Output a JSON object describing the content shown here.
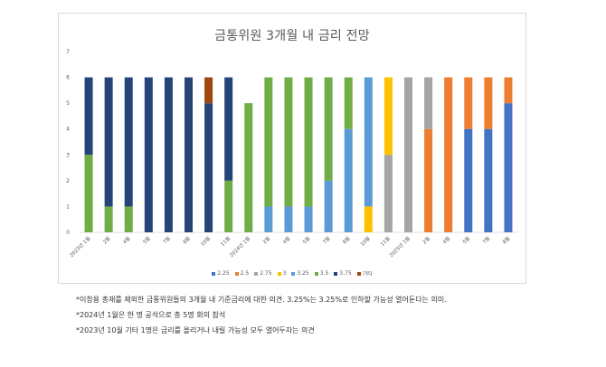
{
  "chart_data": {
    "type": "bar",
    "stacked": true,
    "title": "금통위원 3개월 내 금리 전망",
    "xlabel": "",
    "ylabel": "",
    "ylim": [
      0,
      7
    ],
    "yticks": [
      0,
      1,
      2,
      3,
      4,
      5,
      6,
      7
    ],
    "grid": false,
    "legend_position": "bottom",
    "categories": [
      "2023년 1월",
      "2월",
      "4월",
      "5월",
      "7월",
      "8월",
      "10월",
      "11월",
      "2024년 1월",
      "2월",
      "4월",
      "5월",
      "7월",
      "8월",
      "10월",
      "11월",
      "2025년 1월",
      "2월",
      "4월",
      "5월",
      "7월",
      "8월"
    ],
    "series": [
      {
        "name": "2.25",
        "color": "#4472c4",
        "values": [
          0,
          0,
          0,
          0,
          0,
          0,
          0,
          0,
          0,
          0,
          0,
          0,
          0,
          0,
          0,
          0,
          0,
          0,
          0,
          4,
          4,
          5
        ]
      },
      {
        "name": "2.5",
        "color": "#ed7d31",
        "values": [
          0,
          0,
          0,
          0,
          0,
          0,
          0,
          0,
          0,
          0,
          0,
          0,
          0,
          0,
          0,
          0,
          0,
          4,
          6,
          2,
          2,
          1
        ]
      },
      {
        "name": "2.75",
        "color": "#a5a5a5",
        "values": [
          0,
          0,
          0,
          0,
          0,
          0,
          0,
          0,
          0,
          0,
          0,
          0,
          0,
          0,
          0,
          3,
          6,
          2,
          0,
          0,
          0,
          0
        ]
      },
      {
        "name": "3",
        "color": "#ffc000",
        "values": [
          0,
          0,
          0,
          0,
          0,
          0,
          0,
          0,
          0,
          0,
          0,
          0,
          0,
          0,
          1,
          3,
          0,
          0,
          0,
          0,
          0,
          0
        ]
      },
      {
        "name": "3.25",
        "color": "#5b9bd5",
        "values": [
          0,
          0,
          0,
          0,
          0,
          0,
          0,
          0,
          0,
          1,
          1,
          1,
          2,
          4,
          5,
          0,
          0,
          0,
          0,
          0,
          0,
          0
        ]
      },
      {
        "name": "3.5",
        "color": "#70ad47",
        "values": [
          3,
          1,
          1,
          0,
          0,
          0,
          0,
          2,
          5,
          5,
          5,
          5,
          4,
          2,
          0,
          0,
          0,
          0,
          0,
          0,
          0,
          0
        ]
      },
      {
        "name": "3.75",
        "color": "#264478",
        "values": [
          3,
          5,
          5,
          6,
          6,
          6,
          5,
          4,
          0,
          0,
          0,
          0,
          0,
          0,
          0,
          0,
          0,
          0,
          0,
          0,
          0,
          0
        ]
      },
      {
        "name": "기타",
        "color": "#9e480e",
        "values": [
          0,
          0,
          0,
          0,
          0,
          0,
          1,
          0,
          0,
          0,
          0,
          0,
          0,
          0,
          0,
          0,
          0,
          0,
          0,
          0,
          0,
          0
        ]
      }
    ]
  },
  "notes": [
    "*이창용 총재를 제외한 금통위원들의 3개월 내 기준금리에 대한 의견. 3.25%는 3.25%로 인하할 가능성 열어둔다는 의미.",
    "*2024년 1월은 한 명 공석으로 총 5명 회의 참석",
    "*2023년 10월 기타 1명은 금리를 올리거나 내릴 가능성 모두 열어두자는 의견"
  ]
}
